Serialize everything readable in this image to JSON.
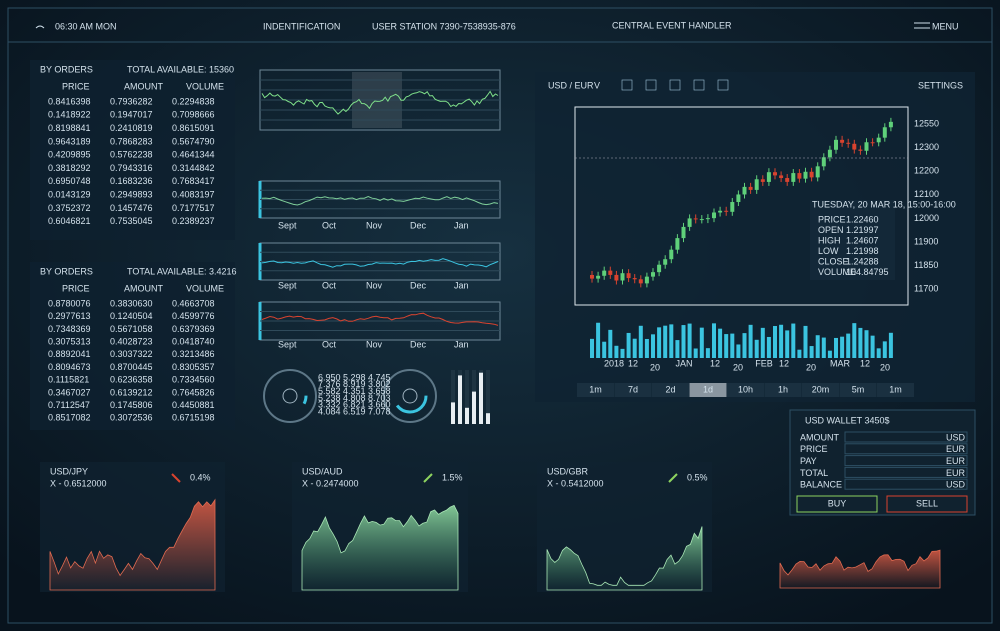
{
  "header": {
    "time": "06:30 AM MON",
    "identification": "INDENTIFICATION",
    "station": "USER  STATION 7390-7538935-876",
    "handler": "CENTRAL EVENT HANDLER",
    "menu": "MENU"
  },
  "order_tables": [
    {
      "title": "BY ORDERS",
      "total": "TOTAL AVAILABLE: 15360",
      "columns": [
        "PRICE",
        "AMOUNT",
        "VOLUME"
      ],
      "rows": [
        [
          "0.8416398",
          "0.7936282",
          "0.2294838"
        ],
        [
          "0.1418922",
          "0.1947017",
          "0.7098666"
        ],
        [
          "0.8198841",
          "0.2410819",
          "0.8615091"
        ],
        [
          "0.9643189",
          "0.7868283",
          "0.5674790"
        ],
        [
          "0.4209895",
          "0.5762238",
          "0.4641344"
        ],
        [
          "0.3818292",
          "0.7943316",
          "0.3144842"
        ],
        [
          "0.6950748",
          "0.1683236",
          "0.7683417"
        ],
        [
          "0.0143129",
          "0.2949893",
          "0.4083197"
        ],
        [
          "0.3752372",
          "0.1457476",
          "0.7177517"
        ],
        [
          "0.6046821",
          "0.7535045",
          "0.2389237"
        ]
      ]
    },
    {
      "title": "BY ORDERS",
      "total": "TOTAL AVAILABLE: 3.4216",
      "columns": [
        "PRICE",
        "AMOUNT",
        "VOLUME"
      ],
      "rows": [
        [
          "0.8780076",
          "0.3830630",
          "0.4663708"
        ],
        [
          "0.2977613",
          "0.1240504",
          "0.4599776"
        ],
        [
          "0.7348369",
          "0.5671058",
          "0.6379369"
        ],
        [
          "0.3075313",
          "0.4028723",
          "0.0418740"
        ],
        [
          "0.8892041",
          "0.3037322",
          "0.3213486"
        ],
        [
          "0.8094673",
          "0.8700445",
          "0.8305357"
        ],
        [
          "0.1115821",
          "0.6236358",
          "0.7334560"
        ],
        [
          "0.3467027",
          "0.6139212",
          "0.7645826"
        ],
        [
          "0.7112547",
          "0.1745806",
          "0.4450881"
        ],
        [
          "0.8517082",
          "0.3072536",
          "0.6715198"
        ]
      ]
    }
  ],
  "mini_chart_months": [
    "Sept",
    "Oct",
    "Nov",
    "Dec",
    "Jan"
  ],
  "gauge_readout": [
    "6.950 5.298 4.745",
    "7.376 8.919 3.802",
    "5.582 4.351 3.658",
    "5.238 4.808 8.703",
    "3.332 6.821 3.660",
    "4.084 6.519 7.078"
  ],
  "main_chart": {
    "pair": "USD / EUR",
    "pair_toggle": "V",
    "settings": "SETTINGS",
    "y_labels": [
      "12550",
      "12300",
      "12200",
      "12100",
      "12000",
      "11900",
      "11850",
      "11700"
    ],
    "x_labels": [
      "2018",
      "12",
      "20",
      "JAN",
      "12",
      "20",
      "FEB",
      "12",
      "20",
      "MAR",
      "12",
      "20"
    ],
    "tooltip": {
      "title": "TUESDAY, 20 MAR 18, 15:00-16:00",
      "rows": [
        [
          "PRICE",
          "1.22460"
        ],
        [
          "OPEN",
          "1.21997"
        ],
        [
          "HIGH",
          "1.24607"
        ],
        [
          "LOW",
          "1.21998"
        ],
        [
          "CLOSE",
          "1.24288"
        ],
        [
          "VOLUME",
          "104.84795"
        ]
      ]
    },
    "timeframes": [
      "1m",
      "7d",
      "2d",
      "1d",
      "10h",
      "1h",
      "20m",
      "5m",
      "1m"
    ],
    "active_timeframe": 3
  },
  "pairs": [
    {
      "name": "USD/JPY",
      "x": "X - 0.6512000",
      "change": "0.4%",
      "direction": "down"
    },
    {
      "name": "USD/AUD",
      "x": "X - 0.2474000",
      "change": "1.5%",
      "direction": "up"
    },
    {
      "name": "USD/GBR",
      "x": "X - 0.5412000",
      "change": "0.5%",
      "direction": "up"
    }
  ],
  "wallet": {
    "title": "USD WALLET 3450$",
    "rows": [
      [
        "AMOUNT",
        "USD"
      ],
      [
        "PRICE",
        "EUR"
      ],
      [
        "PAY",
        "EUR"
      ],
      [
        "TOTAL",
        "EUR"
      ],
      [
        "BALANCE",
        "USD"
      ]
    ],
    "buy": "BUY",
    "sell": "SELL"
  }
}
